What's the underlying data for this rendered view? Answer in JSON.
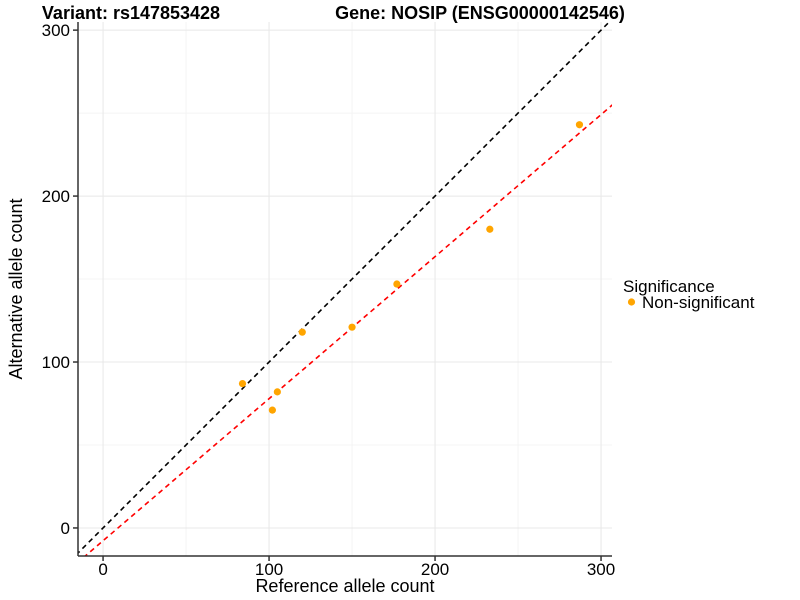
{
  "chart_data": {
    "type": "scatter",
    "titles": {
      "left": "Variant: rs147853428",
      "right": "Gene: NOSIP (ENSG00000142546)"
    },
    "xlabel": "Reference allele count",
    "ylabel": "Alternative allele count",
    "xlim": [
      -15.1,
      306.6
    ],
    "ylim": [
      -16.9,
      304.9
    ],
    "x_ticks": [
      0,
      100,
      200,
      300
    ],
    "y_ticks": [
      0,
      100,
      200,
      300
    ],
    "x_minor_ticks": [
      50,
      150,
      250
    ],
    "y_minor_ticks": [
      50,
      150,
      250
    ],
    "grid": true,
    "series": [
      {
        "name": "Non-significant",
        "color": "#FFA500",
        "points": [
          [
            84,
            87
          ],
          [
            102,
            71
          ],
          [
            105,
            82
          ],
          [
            120,
            118
          ],
          [
            150,
            121
          ],
          [
            177,
            147
          ],
          [
            233,
            180
          ],
          [
            287,
            243
          ]
        ]
      }
    ],
    "lines": [
      {
        "name": "identity-line",
        "slope": 1,
        "intercept": 0,
        "color": "#000000",
        "dash": "5 4"
      },
      {
        "name": "fit-line",
        "slope": 0.856,
        "intercept": -7.7,
        "color": "#FF0000",
        "dash": "5 4"
      }
    ],
    "legend": {
      "title": "Significance",
      "position": "right",
      "entries": [
        {
          "label": "Non-significant",
          "color": "#FFA500"
        }
      ]
    },
    "colors": {
      "background": "#FFFFFF",
      "grid_major": "#E8E8E8",
      "grid_minor": "#F4F4F4",
      "axis_line": "#333333",
      "point": "#FFA500",
      "identity_line": "#000000",
      "fit_line": "#FF0000"
    }
  }
}
